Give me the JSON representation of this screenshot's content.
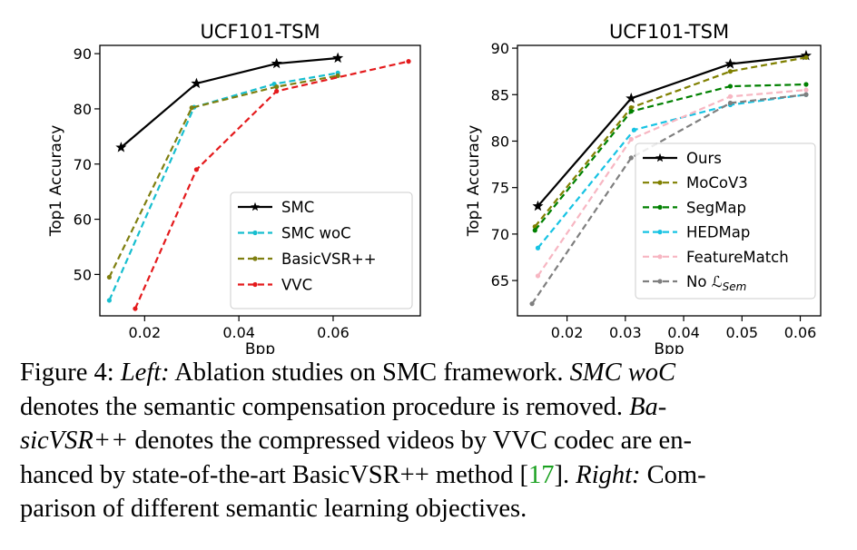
{
  "chart_data": [
    {
      "type": "line",
      "title": "UCF101-TSM",
      "xlabel": "Bpp",
      "ylabel": "Top1 Accuracy",
      "xlim": [
        0.0105,
        0.0785
      ],
      "ylim": [
        42.5,
        91.5
      ],
      "xticks": [
        0.02,
        0.04,
        0.06
      ],
      "xtick_labels": [
        "0.02",
        "0.04",
        "0.06"
      ],
      "yticks": [
        50,
        60,
        70,
        80,
        90
      ],
      "ytick_labels": [
        "50",
        "60",
        "70",
        "80",
        "90"
      ],
      "legend_position": "lower-right",
      "series": [
        {
          "name": "SMC",
          "color": "#000000",
          "dash": "solid",
          "marker": "star",
          "x": [
            0.015,
            0.031,
            0.048,
            0.061
          ],
          "y": [
            73.0,
            84.6,
            88.2,
            89.2
          ]
        },
        {
          "name": "SMC woC",
          "color": "#17becf",
          "dash": "dashed",
          "marker": "dot",
          "x": [
            0.0125,
            0.0305,
            0.0475,
            0.061
          ],
          "y": [
            45.3,
            80.3,
            84.5,
            86.5
          ]
        },
        {
          "name": "BasicVSR++",
          "color": "#7f7f10",
          "dash": "dashed",
          "marker": "dot",
          "x": [
            0.0125,
            0.03,
            0.048,
            0.061
          ],
          "y": [
            49.5,
            80.2,
            84.0,
            86.0
          ]
        },
        {
          "name": "VVC",
          "color": "#e41a1c",
          "dash": "dashed",
          "marker": "dot",
          "x": [
            0.018,
            0.031,
            0.048,
            0.076
          ],
          "y": [
            43.8,
            69.0,
            83.2,
            88.6
          ]
        }
      ]
    },
    {
      "type": "line",
      "title": "UCF101-TSM",
      "xlabel": "Bpp",
      "ylabel": "Top1 Accuracy",
      "xlim": [
        0.0115,
        0.0635
      ],
      "ylim": [
        61.2,
        90.3
      ],
      "xticks": [
        0.02,
        0.03,
        0.04,
        0.05,
        0.06
      ],
      "xtick_labels": [
        "0.02",
        "0.03",
        "0.04",
        "0.05",
        "0.06"
      ],
      "yticks": [
        65,
        70,
        75,
        80,
        85,
        90
      ],
      "ytick_labels": [
        "65",
        "70",
        "75",
        "80",
        "85",
        "90"
      ],
      "legend_position": "lower-right",
      "series": [
        {
          "name": "Ours",
          "color": "#000000",
          "dash": "solid",
          "marker": "star",
          "x": [
            0.015,
            0.031,
            0.048,
            0.061
          ],
          "y": [
            73.0,
            84.6,
            88.3,
            89.2
          ]
        },
        {
          "name": "MoCoV3",
          "color": "#808000",
          "dash": "dashed",
          "marker": "dot",
          "x": [
            0.0145,
            0.031,
            0.048,
            0.061
          ],
          "y": [
            70.8,
            83.6,
            87.5,
            89.0
          ]
        },
        {
          "name": "SegMap",
          "color": "#008000",
          "dash": "dashed",
          "marker": "dot",
          "x": [
            0.0145,
            0.031,
            0.048,
            0.061
          ],
          "y": [
            70.4,
            83.2,
            85.9,
            86.1
          ]
        },
        {
          "name": "HEDMap",
          "color": "#17c3e3",
          "dash": "dashed",
          "marker": "dot",
          "x": [
            0.015,
            0.0315,
            0.048,
            0.061
          ],
          "y": [
            68.5,
            81.2,
            83.9,
            85.0
          ]
        },
        {
          "name": "FeatureMatch",
          "color": "#f7b6c2",
          "dash": "dashed",
          "marker": "dot",
          "x": [
            0.015,
            0.031,
            0.048,
            0.061
          ],
          "y": [
            65.5,
            80.2,
            84.8,
            85.5
          ]
        },
        {
          "name": "No ℒSem",
          "name_main": "No ",
          "name_script": "ℒ",
          "name_sub": "Sem",
          "color": "#7f7f7f",
          "dash": "dashed",
          "marker": "dot",
          "x": [
            0.014,
            0.031,
            0.048,
            0.061
          ],
          "y": [
            62.5,
            78.2,
            84.1,
            85.0
          ]
        }
      ]
    }
  ],
  "caption": {
    "l1": "Figure 4: ",
    "l1_it": "Left:",
    "l1_rest": " Ablation studies on SMC framework. ",
    "l1_it2": "SMC woC",
    "l2": "denotes the semantic compensation procedure is removed. ",
    "l2_it": "Ba-",
    "l3_it": "sicVSR++",
    "l3": " denotes the compressed videos by VVC codec are en-",
    "l4": "hanced by state-of-the-art BasicVSR++ method [",
    "l4_ref": "17",
    "l4_mid": "]. ",
    "l4_it": "Right:",
    "l4_rest": " Com-",
    "l5": "parison of different semantic learning objectives."
  }
}
